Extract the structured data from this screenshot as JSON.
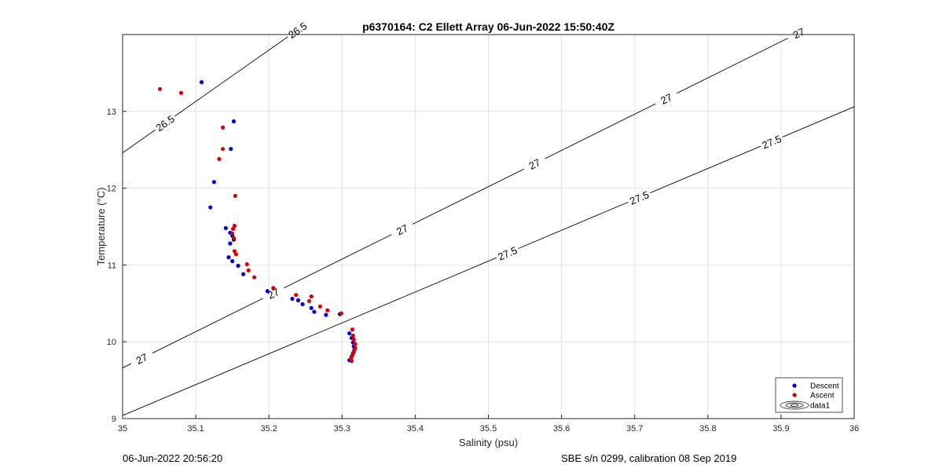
{
  "chart_data": {
    "type": "scatter",
    "title": "p6370164: C2 Ellett Array 06-Jun-2022 15:50:40Z",
    "xlabel": "Salinity (psu)",
    "ylabel": "Temperature (°C)",
    "xlim": [
      35,
      36
    ],
    "ylim": [
      9,
      14
    ],
    "xticks": [
      "35",
      "35.1",
      "35.2",
      "35.3",
      "35.4",
      "35.5",
      "35.6",
      "35.7",
      "35.8",
      "35.9",
      "36"
    ],
    "yticks": [
      "9",
      "10",
      "11",
      "12",
      "13"
    ],
    "grid": true,
    "legend_position": "bottom-right",
    "series": [
      {
        "name": "Descent",
        "color": "#0000cc",
        "x": [
          35.108,
          35.152,
          35.148,
          35.125,
          35.12,
          35.141,
          35.147,
          35.15,
          35.152,
          35.147,
          35.145,
          35.15,
          35.158,
          35.165,
          35.198,
          35.232,
          35.24,
          35.246,
          35.258,
          35.262,
          35.278,
          35.297,
          35.31,
          35.313,
          35.315,
          35.316,
          35.317,
          35.315,
          35.313,
          35.31
        ],
        "y": [
          13.38,
          12.87,
          12.51,
          12.08,
          11.75,
          11.48,
          11.42,
          11.38,
          11.33,
          11.28,
          11.1,
          11.05,
          10.99,
          10.88,
          10.66,
          10.56,
          10.54,
          10.49,
          10.44,
          10.39,
          10.35,
          10.36,
          10.11,
          10.05,
          9.99,
          9.94,
          9.9,
          9.85,
          9.81,
          9.76
        ]
      },
      {
        "name": "Ascent",
        "color": "#dd0000",
        "x": [
          35.051,
          35.08,
          35.137,
          35.137,
          35.132,
          35.154,
          35.153,
          35.151,
          35.15,
          35.152,
          35.153,
          35.155,
          35.17,
          35.172,
          35.18,
          35.206,
          35.237,
          35.255,
          35.258,
          35.27,
          35.28,
          35.299,
          35.314,
          35.315,
          35.316,
          35.318,
          35.318,
          35.316,
          35.314,
          35.312,
          35.313
        ],
        "y": [
          13.29,
          13.24,
          12.79,
          12.51,
          12.38,
          11.9,
          11.51,
          11.47,
          11.41,
          11.35,
          11.18,
          11.14,
          11.01,
          10.93,
          10.84,
          10.7,
          10.61,
          10.53,
          10.59,
          10.46,
          10.41,
          10.37,
          10.16,
          10.08,
          10.03,
          9.97,
          9.92,
          9.87,
          9.82,
          9.78,
          9.75
        ]
      }
    ],
    "contours": [
      {
        "label": "26.5",
        "slope": 6.69,
        "intercept": -221.69
      },
      {
        "label": "27",
        "slope": 4.72,
        "intercept": -155.54
      },
      {
        "label": "27.5",
        "slope": 4.02,
        "intercept": -131.66
      }
    ],
    "contour_label_positions": [
      {
        "label": "26.5",
        "x": 35.058
      },
      {
        "label": "26.5",
        "x": 35.239
      },
      {
        "label": "27",
        "x": 35.026
      },
      {
        "label": "27",
        "x": 35.206
      },
      {
        "label": "27",
        "x": 35.382
      },
      {
        "label": "27",
        "x": 35.563
      },
      {
        "label": "27",
        "x": 35.743
      },
      {
        "label": "27",
        "x": 35.924
      },
      {
        "label": "27.5",
        "x": 35.526
      },
      {
        "label": "27.5",
        "x": 35.706
      },
      {
        "label": "27.5",
        "x": 35.887
      }
    ],
    "legend": [
      "Descent",
      "Ascent",
      "data1"
    ]
  },
  "footer": {
    "left": "06-Jun-2022 20:56:20",
    "right": "SBE s/n 0299, calibration 08 Sep 2019"
  }
}
